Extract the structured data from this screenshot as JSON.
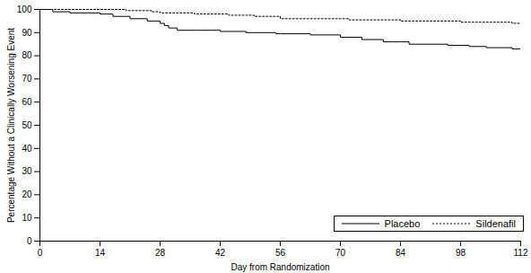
{
  "chart_data": {
    "type": "line",
    "x_label": "Day from Randomization",
    "y_label": "Percentage Without a Clinically Worsening Event",
    "x": [
      0,
      3,
      7,
      14,
      17,
      20,
      21,
      25,
      26,
      28,
      29,
      30,
      32,
      36,
      42,
      44,
      48,
      50,
      55,
      56,
      63,
      70,
      72,
      75,
      80,
      84,
      86,
      95,
      98,
      100,
      104,
      110,
      112
    ],
    "series": [
      {
        "name": "Placebo",
        "color": "#000000",
        "line_style": "solid",
        "values": [
          100,
          99,
          98.5,
          98,
          97,
          97,
          96,
          95,
          95,
          94,
          93,
          92,
          91,
          91,
          90.5,
          90.5,
          90,
          90,
          89.5,
          89.5,
          89,
          88,
          88,
          87,
          86,
          86,
          85,
          84.5,
          84.5,
          84,
          83.5,
          83,
          81.5
        ]
      },
      {
        "name": "Sildenafil",
        "color": "#000000",
        "line_style": "dotted",
        "values": [
          100,
          100,
          100,
          100,
          100,
          99.5,
          99.5,
          99.5,
          99,
          98.5,
          98.5,
          98.5,
          98.5,
          98,
          98,
          97.5,
          97.5,
          97,
          97,
          96,
          96,
          96,
          95.5,
          95.5,
          95.5,
          95,
          95,
          95,
          94.5,
          94.5,
          94.5,
          94,
          94
        ]
      }
    ],
    "xlim": [
      0,
      112
    ],
    "xticks": [
      0,
      14,
      28,
      42,
      56,
      70,
      84,
      98,
      112
    ],
    "ylim": [
      0,
      100
    ],
    "yticks": [
      0,
      10,
      20,
      30,
      40,
      50,
      60,
      70,
      80,
      90,
      100
    ],
    "grid": false,
    "legend": "bottom-right"
  }
}
